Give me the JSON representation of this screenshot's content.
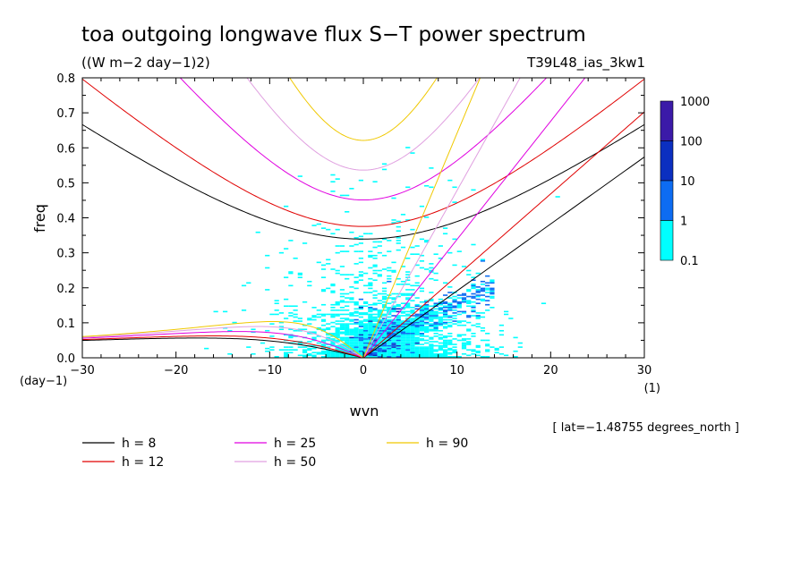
{
  "chart_data": {
    "type": "heatmap",
    "title": "toa outgoing longwave flux S−T power spectrum",
    "subtitle": "((W m−2 day−1)2)",
    "run_label": "T39L48_ias_3kw1",
    "xlabel": "wvn",
    "ylabel": "freq",
    "x_unit": "(1)",
    "y_unit": "(day−1)",
    "xlim": [
      -30,
      30
    ],
    "ylim": [
      0,
      0.8
    ],
    "x_ticks": [
      -30,
      -20,
      -10,
      0,
      10,
      20,
      30
    ],
    "x_tick_labels": [
      "−30",
      "−20",
      "−10",
      "0",
      "10",
      "20",
      "30"
    ],
    "y_ticks": [
      0.0,
      0.1,
      0.2,
      0.3,
      0.4,
      0.5,
      0.6,
      0.7,
      0.8
    ],
    "y_tick_labels": [
      "0.0",
      "0.1",
      "0.2",
      "0.3",
      "0.4",
      "0.5",
      "0.6",
      "0.7",
      "0.8"
    ],
    "colorbar": {
      "levels": [
        "0.1",
        "1",
        "10",
        "100",
        "1000"
      ],
      "colors": [
        "#00ffff",
        "#0d6cf2",
        "#0b2fc0",
        "#3b1aa8"
      ]
    },
    "annotation": "[ lat=−1.48755 degrees_north ]",
    "dispersion_curves": [
      {
        "label": "h =  8",
        "h": 8,
        "color": "#000000"
      },
      {
        "label": "h = 12",
        "h": 12,
        "color": "#e00000"
      },
      {
        "label": "h = 25",
        "h": 25,
        "color": "#e000e0"
      },
      {
        "label": "h = 50",
        "h": 50,
        "color": "#e0a0e0"
      },
      {
        "label": "h = 90",
        "h": 90,
        "color": "#f0c800"
      }
    ],
    "grid": false,
    "legend_position": "below plot"
  }
}
